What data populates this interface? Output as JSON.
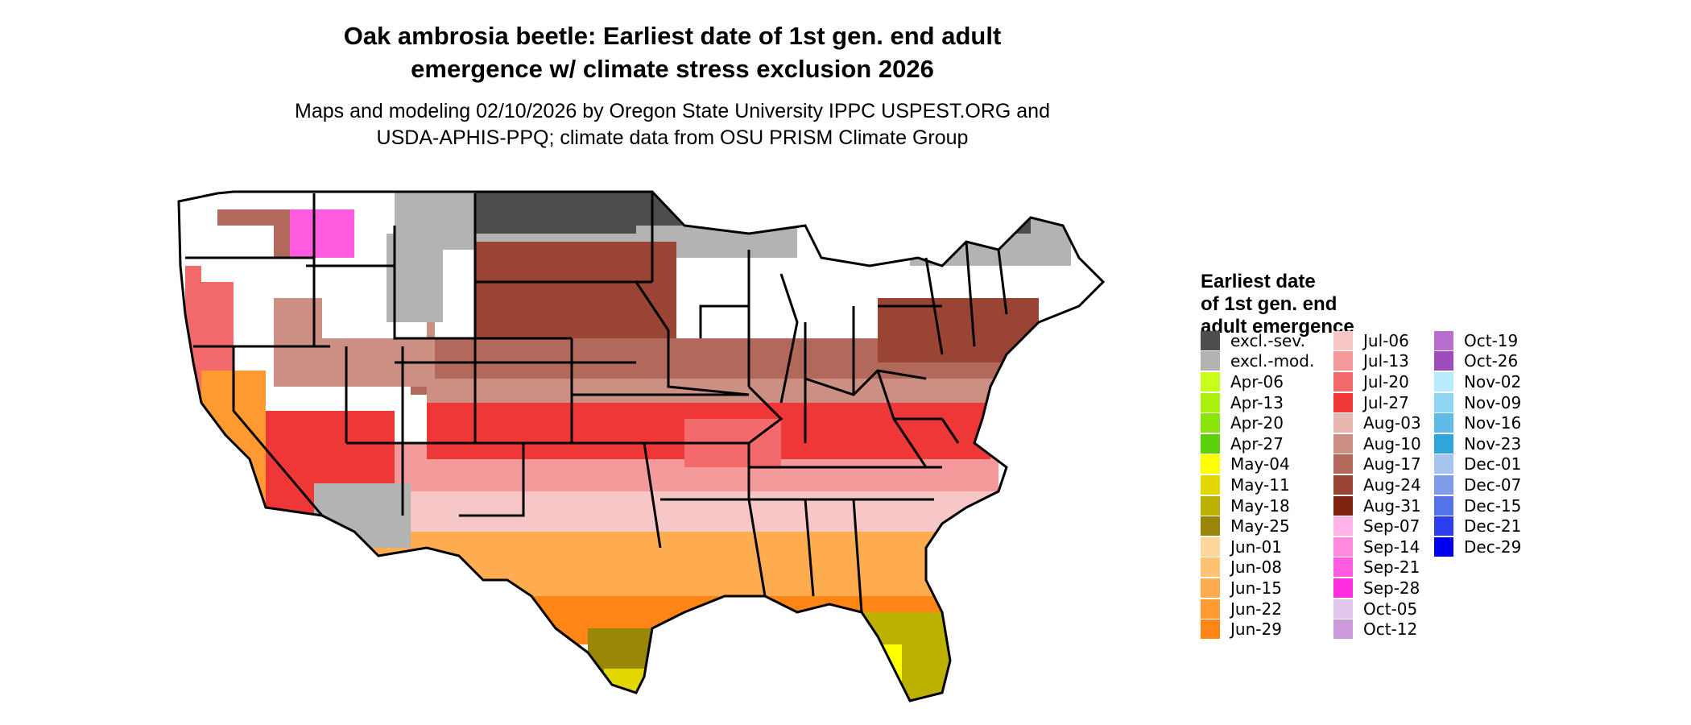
{
  "title_line1": "Oak ambrosia beetle: Earliest date of 1st gen. end adult",
  "title_line2": "emergence w/ climate stress exclusion 2026",
  "subtitle_line1": "Maps and modeling 02/10/2026 by Oregon State University IPPC USPEST.ORG and",
  "subtitle_line2": "USDA-APHIS-PPQ; climate data from OSU PRISM Climate Group",
  "legend": {
    "title_line1": "Earliest date",
    "title_line2": "of 1st gen. end",
    "title_line3": "adult emergence",
    "columns": [
      [
        {
          "label": "excl.-sev.",
          "color": "#4d4d4d"
        },
        {
          "label": "excl.-mod.",
          "color": "#b3b3b3"
        },
        {
          "label": "Apr-06",
          "color": "#c8ff1a"
        },
        {
          "label": "Apr-13",
          "color": "#a9f00f"
        },
        {
          "label": "Apr-20",
          "color": "#8be40a"
        },
        {
          "label": "Apr-27",
          "color": "#5ad10a"
        },
        {
          "label": "May-04",
          "color": "#ffff00"
        },
        {
          "label": "May-11",
          "color": "#e2d800"
        },
        {
          "label": "May-18",
          "color": "#bdb100"
        },
        {
          "label": "May-25",
          "color": "#9a8705"
        },
        {
          "label": "Jun-01",
          "color": "#ffd79a"
        },
        {
          "label": "Jun-08",
          "color": "#ffc373"
        },
        {
          "label": "Jun-15",
          "color": "#ffad50"
        },
        {
          "label": "Jun-22",
          "color": "#ff9a32"
        },
        {
          "label": "Jun-29",
          "color": "#ff8515"
        }
      ],
      [
        {
          "label": "Jul-06",
          "color": "#f7c6c6"
        },
        {
          "label": "Jul-13",
          "color": "#f49a9a"
        },
        {
          "label": "Jul-20",
          "color": "#f26a6a"
        },
        {
          "label": "Jul-27",
          "color": "#ef3737"
        },
        {
          "label": "Aug-03",
          "color": "#e8b8b0"
        },
        {
          "label": "Aug-10",
          "color": "#cc8f83"
        },
        {
          "label": "Aug-17",
          "color": "#b2685a"
        },
        {
          "label": "Aug-24",
          "color": "#9a4433"
        },
        {
          "label": "Aug-31",
          "color": "#7f2210"
        },
        {
          "label": "Sep-07",
          "color": "#ffb3e6"
        },
        {
          "label": "Sep-14",
          "color": "#ff8ae0"
        },
        {
          "label": "Sep-21",
          "color": "#ff5be0"
        },
        {
          "label": "Sep-28",
          "color": "#ff2de0"
        },
        {
          "label": "Oct-05",
          "color": "#e1c6ea"
        },
        {
          "label": "Oct-12",
          "color": "#cc99dd"
        }
      ],
      [
        {
          "label": "Oct-19",
          "color": "#b86ecc"
        },
        {
          "label": "Oct-26",
          "color": "#9e4cbb"
        },
        {
          "label": "Nov-02",
          "color": "#b8ecfa"
        },
        {
          "label": "Nov-09",
          "color": "#8fd4f0"
        },
        {
          "label": "Nov-16",
          "color": "#5ebce6"
        },
        {
          "label": "Nov-23",
          "color": "#2ea6dc"
        },
        {
          "label": "Dec-01",
          "color": "#a6c4ec"
        },
        {
          "label": "Dec-07",
          "color": "#7f9ce9"
        },
        {
          "label": "Dec-15",
          "color": "#5473e9"
        },
        {
          "label": "Dec-21",
          "color": "#2b3ff0"
        },
        {
          "label": "Dec-29",
          "color": "#0000f0"
        }
      ]
    ]
  }
}
